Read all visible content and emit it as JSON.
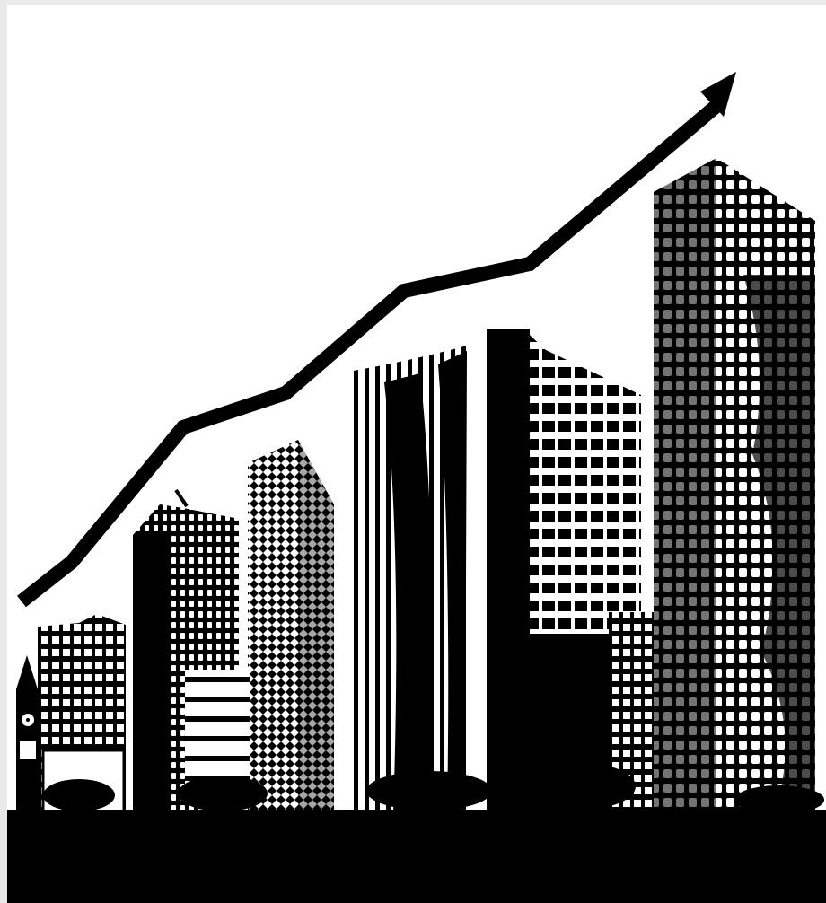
{
  "scene": {
    "style": "black-and-white graphic",
    "background_color": "#ffffff",
    "border_color": "#e9e9e9",
    "ink_color": "#000000",
    "icons": [
      "trend-arrow-icon",
      "clock-tower-icon"
    ]
  }
}
